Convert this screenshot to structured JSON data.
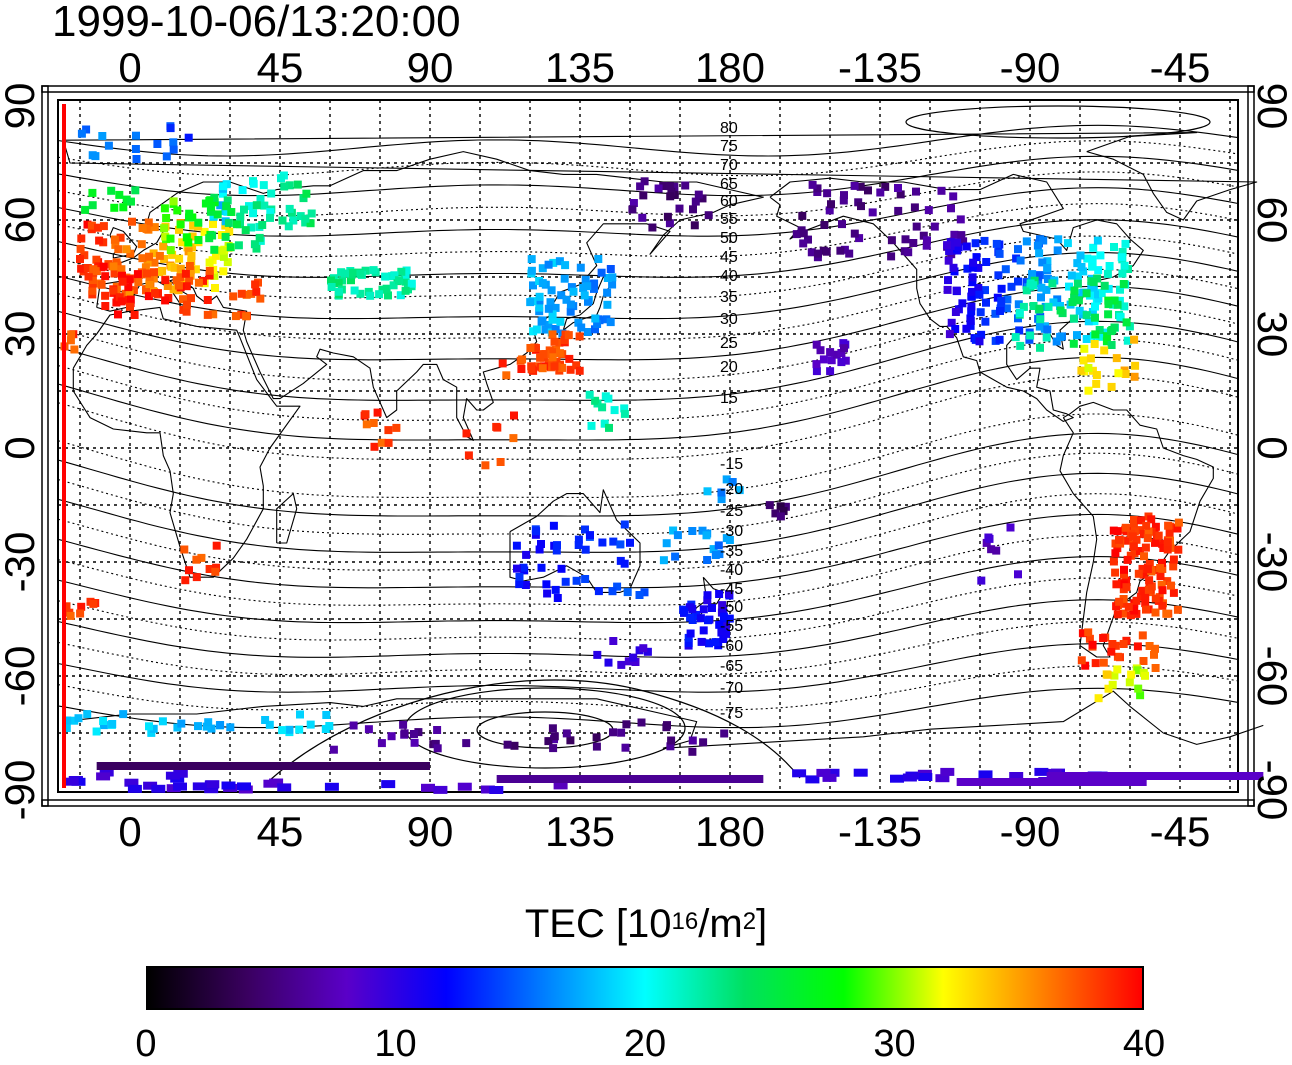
{
  "title": "1999-10-06/13:20:00",
  "map": {
    "top_lon_ticks": [
      "0",
      "45",
      "90",
      "135",
      "180",
      "-135",
      "-90",
      "-45"
    ],
    "bottom_lon_ticks": [
      "0",
      "45",
      "90",
      "135",
      "180",
      "-135",
      "-90",
      "-45"
    ],
    "left_lat_ticks": [
      "90",
      "60",
      "30",
      "0",
      "-30",
      "-60",
      "-90"
    ],
    "right_lat_ticks": [
      "90",
      "60",
      "30",
      "0",
      "-30",
      "-60",
      "-90"
    ],
    "mag_lat_labels": [
      "80",
      "75",
      "70",
      "65",
      "60",
      "55",
      "50",
      "45",
      "40",
      "35",
      "30",
      "25",
      "20",
      "15",
      "-15",
      "-20",
      "-25",
      "-30",
      "-35",
      "-40",
      "-45",
      "-50",
      "-55",
      "-60",
      "-65",
      "-70",
      "-75"
    ],
    "grid": true
  },
  "colorbar": {
    "title_prefix": "TEC  [10",
    "title_exp1": "16",
    "title_mid": "/m",
    "title_exp2": "2",
    "title_suffix": "]",
    "ticks": [
      "0",
      "10",
      "20",
      "30",
      "40"
    ],
    "range": [
      0,
      40
    ],
    "colors": [
      "#000000",
      "#3a0060",
      "#5a00c8",
      "#0000ff",
      "#0080ff",
      "#00ffff",
      "#00e060",
      "#00ff00",
      "#ffff00",
      "#ff8000",
      "#ff0000"
    ]
  }
}
